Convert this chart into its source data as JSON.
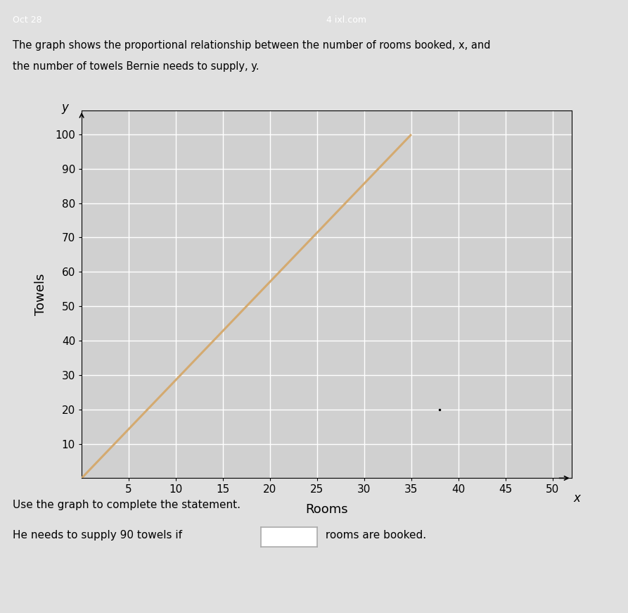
{
  "title_line1": "The graph shows the proportional relationship between the number of rooms booked, x, and",
  "title_line2": "the number of towels Bernie needs to supply, y.",
  "header_left": "Oct 28",
  "header_right": "4 ixl.com",
  "xlabel": "Rooms",
  "ylabel": "Towels",
  "xlim": [
    0,
    52
  ],
  "ylim": [
    0,
    107
  ],
  "xticks": [
    5,
    10,
    15,
    20,
    25,
    30,
    35,
    40,
    45,
    50
  ],
  "yticks": [
    10,
    20,
    30,
    40,
    50,
    60,
    70,
    80,
    90,
    100
  ],
  "line_x": [
    0,
    35
  ],
  "line_y": [
    0,
    100
  ],
  "line_color": "#d4aa70",
  "line_width": 2.2,
  "bg_color": "#e0e0e0",
  "plot_bg_color": "#d0d0d0",
  "grid_color": "#ffffff",
  "statement": "Use the graph to complete the statement.",
  "statement2_part1": "He needs to supply 90 towels if ",
  "statement2_part2": " rooms are booked.",
  "dot_x": 38,
  "dot_y": 20,
  "figsize": [
    8.93,
    8.71
  ],
  "dpi": 100
}
